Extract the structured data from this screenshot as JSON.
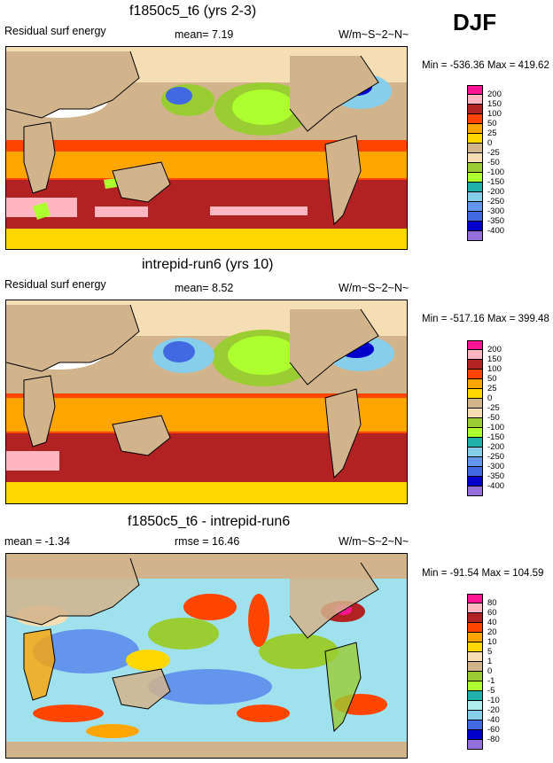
{
  "header": {
    "season": "DJF"
  },
  "panels": [
    {
      "title": "f1850c5_t6 (yrs 2-3)",
      "left_label": "Residual surf energy",
      "center_label": "mean=   7.19",
      "units": "W/m~S~2~N~",
      "minmax": "Min = -536.36 Max = 419.62",
      "legend_labels": [
        "200",
        "150",
        "100",
        "50",
        "25",
        "0",
        "-25",
        "-50",
        "-100",
        "-150",
        "-200",
        "-250",
        "-300",
        "-350",
        "-400"
      ],
      "legend_colors": [
        "#ff1493",
        "#ffb6c1",
        "#b22222",
        "#ff4500",
        "#ffa500",
        "#ffd700",
        "#d2b48c",
        "#f5deb3",
        "#9acd32",
        "#adff2f",
        "#20b2aa",
        "#87ceeb",
        "#6495ed",
        "#4169e1",
        "#0000cd",
        "#9370db"
      ]
    },
    {
      "title": "intrepid-run6 (yrs 10)",
      "left_label": "Residual surf energy",
      "center_label": "mean=   8.52",
      "units": "W/m~S~2~N~",
      "minmax": "Min = -517.16 Max = 399.48",
      "legend_labels": [
        "200",
        "150",
        "100",
        "50",
        "25",
        "0",
        "-25",
        "-50",
        "-100",
        "-150",
        "-200",
        "-250",
        "-300",
        "-350",
        "-400"
      ],
      "legend_colors": [
        "#ff1493",
        "#ffb6c1",
        "#b22222",
        "#ff4500",
        "#ffa500",
        "#ffd700",
        "#d2b48c",
        "#f5deb3",
        "#9acd32",
        "#adff2f",
        "#20b2aa",
        "#87ceeb",
        "#6495ed",
        "#4169e1",
        "#0000cd",
        "#9370db"
      ]
    },
    {
      "title": "f1850c5_t6 - intrepid-run6",
      "left_label": "mean =  -1.34",
      "center_label": "rmse =  16.46",
      "units": "W/m~S~2~N~",
      "minmax": "Min = -91.54 Max = 104.59",
      "legend_labels": [
        "80",
        "60",
        "40",
        "20",
        "10",
        "5",
        "1",
        "0",
        "-1",
        "-5",
        "-10",
        "-20",
        "-40",
        "-60",
        "-80"
      ],
      "legend_colors": [
        "#ff1493",
        "#ffb6c1",
        "#b22222",
        "#ff4500",
        "#ffa500",
        "#ffd700",
        "#f5deb3",
        "#d2b48c",
        "#9acd32",
        "#adff2f",
        "#20b2aa",
        "#afeeee",
        "#87ceeb",
        "#4169e1",
        "#0000cd",
        "#9370db"
      ]
    }
  ],
  "chart_data": [
    {
      "type": "heatmap",
      "title": "f1850c5_t6 (yrs 2-3)",
      "subtitle": "Residual surf energy",
      "mean": 7.19,
      "units": "W/m~S~2~N~",
      "min": -536.36,
      "max": 419.62,
      "contour_levels": [
        -400,
        -350,
        -300,
        -250,
        -200,
        -150,
        -100,
        -50,
        -25,
        0,
        25,
        50,
        100,
        150,
        200
      ]
    },
    {
      "type": "heatmap",
      "title": "intrepid-run6 (yrs 10)",
      "subtitle": "Residual surf energy",
      "mean": 8.52,
      "units": "W/m~S~2~N~",
      "min": -517.16,
      "max": 399.48,
      "contour_levels": [
        -400,
        -350,
        -300,
        -250,
        -200,
        -150,
        -100,
        -50,
        -25,
        0,
        25,
        50,
        100,
        150,
        200
      ]
    },
    {
      "type": "heatmap",
      "title": "f1850c5_t6 - intrepid-run6",
      "mean": -1.34,
      "rmse": 16.46,
      "units": "W/m~S~2~N~",
      "min": -91.54,
      "max": 104.59,
      "contour_levels": [
        -80,
        -60,
        -40,
        -20,
        -10,
        -5,
        -1,
        0,
        1,
        5,
        10,
        20,
        40,
        60,
        80
      ]
    }
  ]
}
